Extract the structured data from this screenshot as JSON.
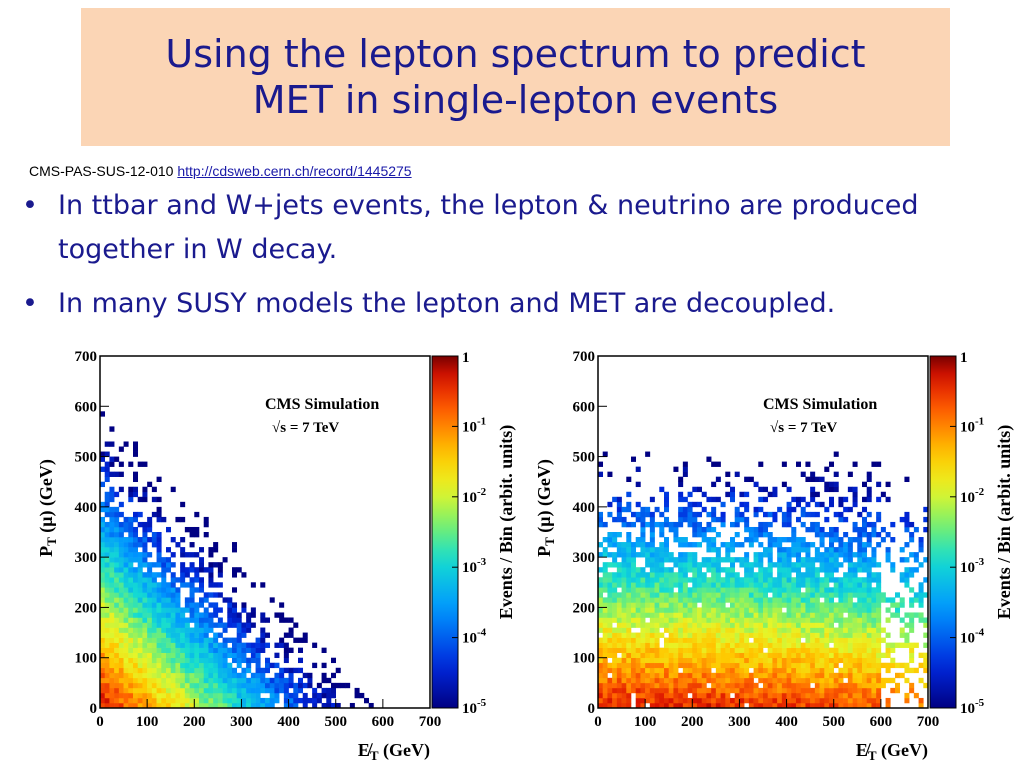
{
  "title": {
    "line1": "Using the lepton spectrum to predict",
    "line2": "MET in single-lepton events"
  },
  "reference": {
    "id": "CMS-PAS-SUS-12-010",
    "url": "http://cdsweb.cern.ch/record/1445275"
  },
  "bullets": [
    "In ttbar and W+jets events, the lepton & neutrino are produced together in W decay.",
    "In many SUSY models the lepton and MET are decoupled."
  ],
  "colors": {
    "title_bg": "#fbd5b5",
    "title_text": "#1a1a8e",
    "link": "#1a1aa8"
  },
  "chart_data": [
    {
      "type": "heatmap",
      "label": "CMS Simulation",
      "energy": "√s = 7 TeV",
      "xlabel": "E̸T (GeV)",
      "ylabel": "PT (μ) (GeV)",
      "zlabel": "Events / Bin (arbit. units)",
      "x_ticks": [
        "0",
        "100",
        "200",
        "300",
        "400",
        "500",
        "600",
        "700"
      ],
      "y_ticks": [
        "0",
        "100",
        "200",
        "300",
        "400",
        "500",
        "600",
        "700"
      ],
      "z_ticks": [
        "1",
        "10-1",
        "10-2",
        "10-3",
        "10-4",
        "10-5"
      ],
      "xlim": [
        0,
        700
      ],
      "ylim": [
        0,
        700
      ],
      "zlim": [
        1e-05,
        1
      ],
      "zscale": "log",
      "shape": "anti-correlated: density falls off along x + y, maximum near origin"
    },
    {
      "type": "heatmap",
      "label": "CMS Simulation",
      "energy": "√s = 7 TeV",
      "xlabel": "E̸T (GeV)",
      "ylabel": "PT (μ) (GeV)",
      "zlabel": "Events / Bin (arbit. units)",
      "x_ticks": [
        "0",
        "100",
        "200",
        "300",
        "400",
        "500",
        "600",
        "700"
      ],
      "y_ticks": [
        "0",
        "100",
        "200",
        "300",
        "400",
        "500",
        "600",
        "700"
      ],
      "z_ticks": [
        "1",
        "10-1",
        "10-2",
        "10-3",
        "10-4",
        "10-5"
      ],
      "xlim": [
        0,
        700
      ],
      "ylim": [
        0,
        700
      ],
      "zlim": [
        1e-05,
        1
      ],
      "zscale": "log",
      "shape": "decoupled: density depends mainly on y, spread across all x"
    }
  ]
}
